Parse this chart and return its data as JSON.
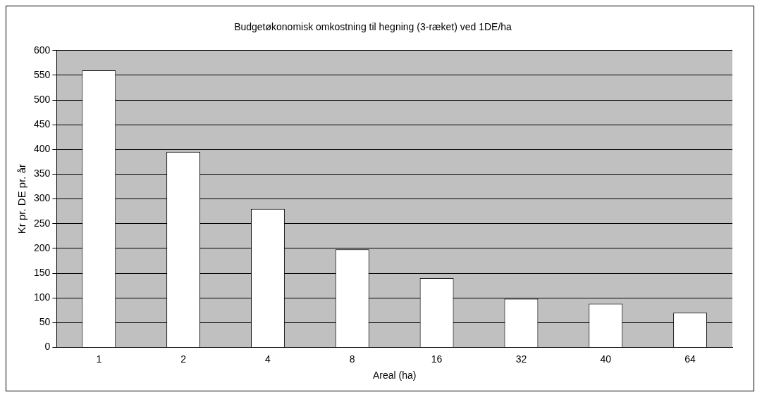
{
  "chart_data": {
    "type": "bar",
    "title": "Budgetøkonomisk omkostning til hegning (3-ræket) ved 1DE/ha",
    "xlabel": "Areal (ha)",
    "ylabel": "Kr pr. DE pr. år",
    "categories": [
      "1",
      "2",
      "4",
      "8",
      "16",
      "32",
      "40",
      "64"
    ],
    "values": [
      560,
      395,
      280,
      198,
      140,
      98,
      88,
      70
    ],
    "color": "#ffffff",
    "ylim": [
      0,
      600
    ],
    "yticks": [
      0,
      50,
      100,
      150,
      200,
      250,
      300,
      350,
      400,
      450,
      500,
      550,
      600
    ],
    "grid": "y",
    "legend": false
  }
}
